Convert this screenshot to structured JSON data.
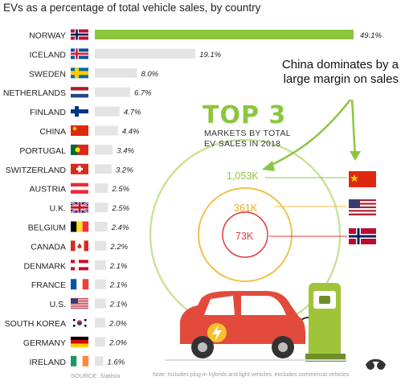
{
  "header": {
    "title": "EVs as a percentage of total vehicle sales, by country"
  },
  "callout": {
    "text": "China dominates by a large margin on sales"
  },
  "top3": {
    "heading": "TOP 3",
    "subtitle_line1": "MARKETS BY TOTAL",
    "subtitle_line2": "EV SALES IN 2018",
    "rings": [
      {
        "value": "1,053K",
        "country": "China",
        "color": "#8cc63f"
      },
      {
        "value": "361K",
        "country": "U.S.",
        "color": "#f2c14e"
      },
      {
        "value": "73K",
        "country": "Norway",
        "color": "#e03a3a"
      }
    ]
  },
  "footer": {
    "source": "SOURCE: Statista",
    "note": "Note: Includes plug-in hybrids and light vehicles, excludes commercial vehicles"
  },
  "colors": {
    "highlight": "#8cc63f",
    "bar": "#e4e4e4",
    "text": "#222222"
  },
  "chart_data": {
    "type": "bar",
    "orientation": "horizontal",
    "categories": [
      "NORWAY",
      "ICELAND",
      "SWEDEN",
      "NETHERLANDS",
      "FINLAND",
      "CHINA",
      "PORTUGAL",
      "SWITZERLAND",
      "AUSTRIA",
      "U.K.",
      "BELGIUM",
      "CANADA",
      "DENMARK",
      "FRANCE",
      "U.S.",
      "SOUTH KOREA",
      "GERMANY",
      "IRELAND"
    ],
    "values": [
      49.1,
      19.1,
      8.0,
      6.7,
      4.7,
      4.4,
      3.4,
      3.2,
      2.5,
      2.5,
      2.4,
      2.2,
      2.1,
      2.1,
      2.1,
      2.0,
      2.0,
      1.6
    ],
    "value_labels": [
      "49.1%",
      "19.1%",
      "8.0%",
      "6.7%",
      "4.7%",
      "4.4%",
      "3.4%",
      "3.2%",
      "2.5%",
      "2.5%",
      "2.4%",
      "2.2%",
      "2.1%",
      "2.1%",
      "2.1%",
      "2.0%",
      "2.0%",
      "1.6%"
    ],
    "flags": [
      "norway",
      "iceland",
      "sweden",
      "netherlands",
      "finland",
      "china",
      "portugal",
      "switzerland",
      "austria",
      "uk",
      "belgium",
      "canada",
      "denmark",
      "france",
      "usa",
      "south-korea",
      "germany",
      "ireland"
    ],
    "title": "EVs as a percentage of total vehicle sales, by country",
    "highlight_category": "NORWAY"
  }
}
